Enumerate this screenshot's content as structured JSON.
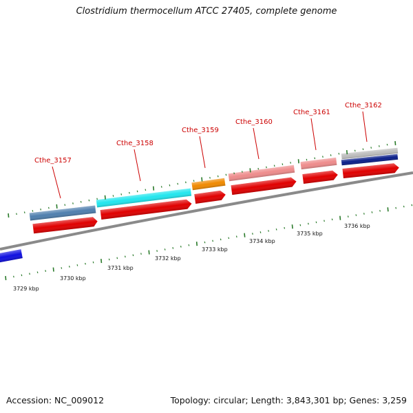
{
  "title": "Clostridium thermocellum ATCC 27405, complete genome",
  "footer": {
    "accession": "Accession: NC_009012",
    "summary": "Topology: circular; Length: 3,843,301 bp; Genes: 3,259"
  },
  "colors": {
    "backbone": "#8a8a8a",
    "cds": "#e00000",
    "tick": "#2a7a2a",
    "label": "#cc0000",
    "gene_3157": "#4f7fae",
    "gene_3158": "#22e6ee",
    "gene_3159": "#f08a00",
    "gene_3160": "#ee8c8c",
    "gene_3161": "#ee8c8c",
    "gene_3162_top": "#bdbdbd",
    "gene_3162_bottom": "#0b1f8a",
    "left_feature": "#1010e0"
  },
  "kbp_labels": [
    "3729 kbp",
    "3730 kbp",
    "3731 kbp",
    "3732 kbp",
    "3733 kbp",
    "3734 kbp",
    "3735 kbp",
    "3736 kbp"
  ],
  "genes": [
    {
      "label": "Cthe_3157"
    },
    {
      "label": "Cthe_3158"
    },
    {
      "label": "Cthe_3159"
    },
    {
      "label": "Cthe_3160"
    },
    {
      "label": "Cthe_3161"
    },
    {
      "label": "Cthe_3162"
    }
  ]
}
